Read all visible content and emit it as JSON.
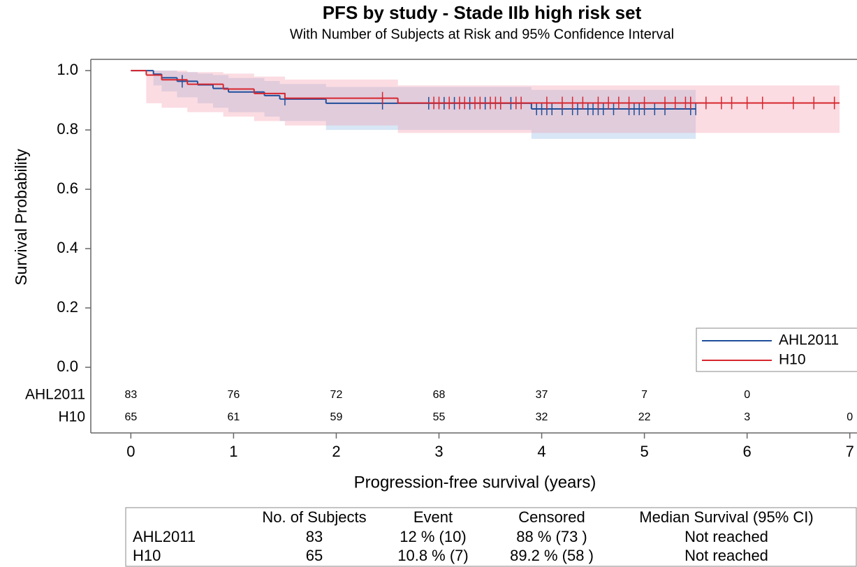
{
  "chart_data": {
    "type": "kaplan-meier",
    "title": "PFS by study - Stade IIb high risk set",
    "subtitle": "With Number of Subjects at Risk and 95% Confidence Interval",
    "x_label": "Progression-free survival (years)",
    "y_label": "Survival Probability",
    "xlim": [
      -0.39,
      7.07
    ],
    "ylim": [
      -0.026,
      1.038
    ],
    "xticks": [
      0,
      1,
      2,
      3,
      4,
      5,
      6,
      7
    ],
    "yticks": [
      {
        "value": 0,
        "label": "0.0"
      },
      0.2,
      0.4,
      0.6,
      0.8,
      {
        "value": 1,
        "label": "1.0"
      }
    ],
    "legend": "bottom-right",
    "series": [
      {
        "name": "AHL2011",
        "color": "#1f4e9a",
        "ci_color": "#8fb8e6",
        "x": [
          0,
          0.22,
          0.3,
          0.45,
          0.65,
          0.8,
          0.95,
          1.3,
          1.45,
          1.9,
          3.9,
          5.5
        ],
        "values": [
          1.0,
          0.988,
          0.976,
          0.964,
          0.952,
          0.94,
          0.928,
          0.916,
          0.904,
          0.89,
          0.871,
          0.871
        ],
        "ci_lower": [
          1.0,
          0.95,
          0.93,
          0.91,
          0.89,
          0.875,
          0.86,
          0.845,
          0.83,
          0.8,
          0.77,
          0.77
        ],
        "ci_upper": [
          1.0,
          1.0,
          1.0,
          0.995,
          0.99,
          0.985,
          0.975,
          0.965,
          0.955,
          0.945,
          0.935,
          0.935
        ],
        "censor_x": [
          0.5,
          1.5,
          2.45,
          2.9,
          3.05,
          3.15,
          3.3,
          3.45,
          3.6,
          3.7,
          3.95,
          4.0,
          4.05,
          4.1,
          4.2,
          4.3,
          4.35,
          4.45,
          4.5,
          4.55,
          4.6,
          4.7,
          4.85,
          4.9,
          4.95,
          5.0,
          5.1,
          5.2,
          5.45,
          5.5
        ],
        "censor_values": [
          0.964,
          0.904,
          0.89,
          0.89,
          0.89,
          0.89,
          0.89,
          0.89,
          0.89,
          0.89,
          0.871,
          0.871,
          0.871,
          0.871,
          0.871,
          0.871,
          0.871,
          0.871,
          0.871,
          0.871,
          0.871,
          0.871,
          0.871,
          0.871,
          0.871,
          0.871,
          0.871,
          0.871,
          0.871,
          0.871
        ]
      },
      {
        "name": "H10",
        "color": "#d7262e",
        "ci_color": "#f39aab",
        "x": [
          0,
          0.15,
          0.3,
          0.55,
          0.9,
          1.2,
          1.5,
          2.6,
          6.9
        ],
        "values": [
          1.0,
          0.985,
          0.969,
          0.954,
          0.938,
          0.923,
          0.907,
          0.891,
          0.891
        ],
        "ci_lower": [
          1.0,
          0.89,
          0.875,
          0.86,
          0.845,
          0.83,
          0.815,
          0.79,
          0.79
        ],
        "ci_upper": [
          1.0,
          1.0,
          1.0,
          0.995,
          0.99,
          0.98,
          0.97,
          0.95,
          0.95
        ],
        "censor_x": [
          2.45,
          2.95,
          3.0,
          3.1,
          3.2,
          3.25,
          3.35,
          3.4,
          3.5,
          3.55,
          3.6,
          3.75,
          3.8,
          4.05,
          4.2,
          4.3,
          4.4,
          4.55,
          4.65,
          4.75,
          4.85,
          5.0,
          5.2,
          5.3,
          5.4,
          5.45,
          5.6,
          5.75,
          5.85,
          6.0,
          6.15,
          6.45,
          6.65,
          6.85
        ],
        "censor_values": [
          0.907,
          0.891,
          0.891,
          0.891,
          0.891,
          0.891,
          0.891,
          0.891,
          0.891,
          0.891,
          0.891,
          0.891,
          0.891,
          0.891,
          0.891,
          0.891,
          0.891,
          0.891,
          0.891,
          0.891,
          0.891,
          0.891,
          0.891,
          0.891,
          0.891,
          0.891,
          0.891,
          0.891,
          0.891,
          0.891,
          0.891,
          0.891,
          0.891,
          0.891
        ]
      }
    ],
    "risk_table": {
      "rows": [
        {
          "name": "AHL2011",
          "counts": [
            83,
            76,
            72,
            68,
            37,
            7,
            0,
            null
          ]
        },
        {
          "name": "H10",
          "counts": [
            65,
            61,
            59,
            55,
            32,
            22,
            3,
            0
          ]
        }
      ]
    },
    "summary_table": {
      "headers": [
        "No. of Subjects",
        "Event",
        "Censored",
        "Median Survival (95% CI)"
      ],
      "rows": [
        [
          "AHL2011",
          "83",
          "12 % (10)",
          "88 % (73 )",
          "Not reached"
        ],
        [
          "H10",
          "65",
          "10.8 % (7)",
          "89.2 % (58 )",
          "Not reached"
        ]
      ]
    }
  }
}
